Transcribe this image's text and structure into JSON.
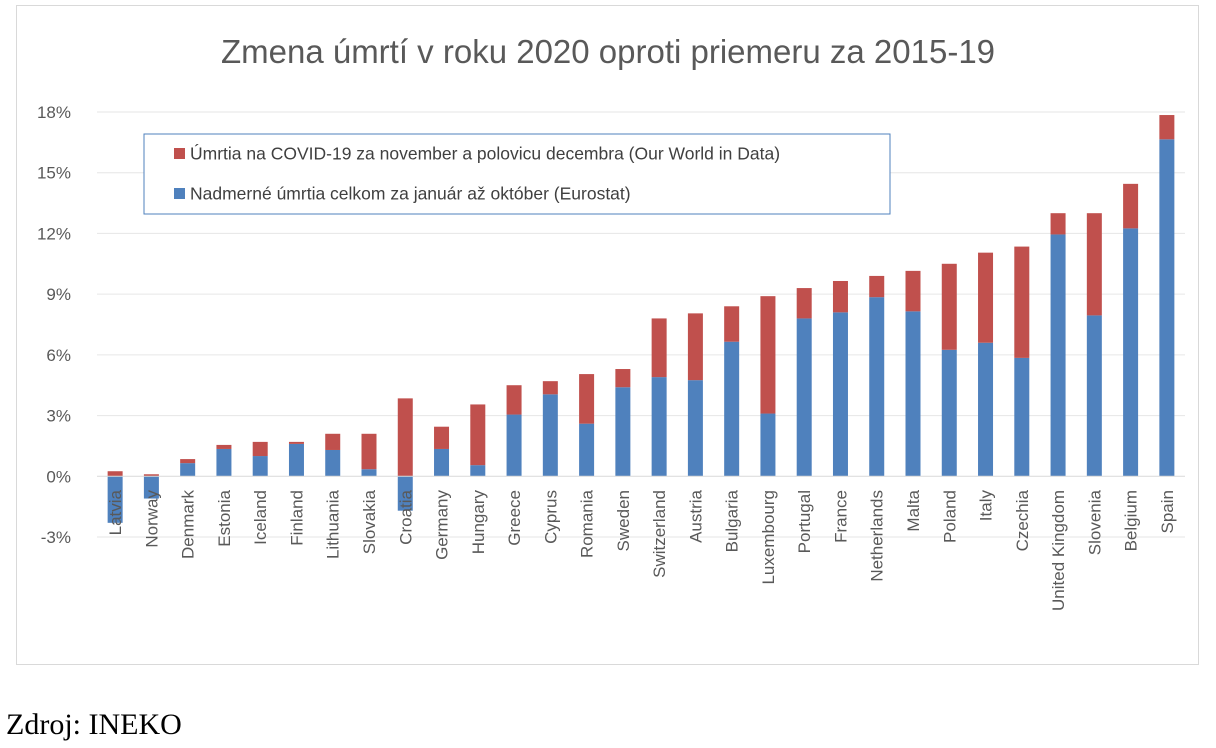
{
  "chart_data": {
    "type": "bar",
    "stacked": true,
    "title": "Zmena úmrtí v roku 2020 oproti priemeru za 2015-19",
    "xlabel": "",
    "ylabel": "",
    "ylim": [
      -3,
      18
    ],
    "yticks": [
      -3,
      0,
      3,
      6,
      9,
      12,
      15,
      18
    ],
    "ytick_labels": [
      "-3%",
      "0%",
      "3%",
      "6%",
      "9%",
      "12%",
      "15%",
      "18%"
    ],
    "grid": true,
    "legend_position": "top-left",
    "categories": [
      "Latvia",
      "Norway",
      "Denmark",
      "Estonia",
      "Iceland",
      "Finland",
      "Lithuania",
      "Slovakia",
      "Croatia",
      "Germany",
      "Hungary",
      "Greece",
      "Cyprus",
      "Romania",
      "Sweden",
      "Switzerland",
      "Austria",
      "Bulgaria",
      "Luxembourg",
      "Portugal",
      "France",
      "Netherlands",
      "Malta",
      "Poland",
      "Italy",
      "Czechia",
      "United Kingdom",
      "Slovenia",
      "Belgium",
      "Spain"
    ],
    "series": [
      {
        "name": "Nadmerné úmrtia celkom za január až október (Eurostat)",
        "color": "#4f81bd",
        "values": [
          -2.3,
          -1.1,
          0.65,
          1.35,
          1.0,
          1.6,
          1.3,
          0.35,
          -1.7,
          1.35,
          0.55,
          3.05,
          4.05,
          2.6,
          4.4,
          4.9,
          4.75,
          6.65,
          3.1,
          7.8,
          8.1,
          8.85,
          8.15,
          6.25,
          6.6,
          5.85,
          11.95,
          7.95,
          12.25,
          16.65
        ]
      },
      {
        "name": "Úmrtia na COVID-19 za november a polovicu decembra (Our World in Data)",
        "color": "#c0504d",
        "values": [
          0.25,
          0.1,
          0.2,
          0.2,
          0.7,
          0.1,
          0.8,
          1.75,
          3.85,
          1.1,
          3.0,
          1.45,
          0.65,
          2.45,
          0.9,
          2.9,
          3.3,
          1.75,
          5.8,
          1.5,
          1.55,
          1.05,
          2.0,
          4.25,
          4.45,
          5.5,
          1.05,
          5.05,
          2.2,
          1.2
        ]
      }
    ],
    "legend_order": [
      1,
      0
    ]
  },
  "source_note": "Zdroj: INEKO"
}
